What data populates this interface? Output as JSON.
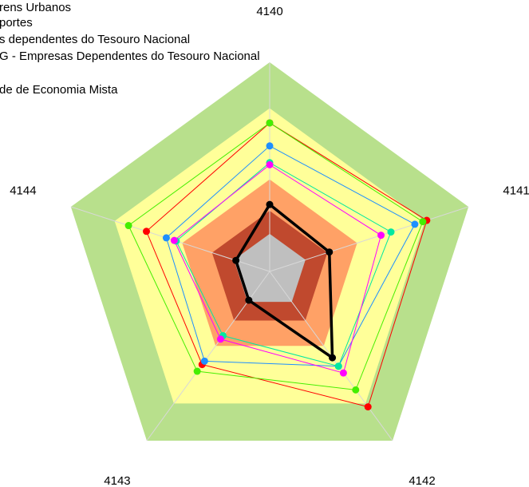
{
  "chart_data": {
    "type": "radar",
    "categories": [
      "4140",
      "4141",
      "4142",
      "4143",
      "4144"
    ],
    "ylim": [
      0,
      100
    ],
    "bands": [
      {
        "value": 100,
        "color": "#b8e08c"
      },
      {
        "value": 78,
        "color": "#ffff99"
      },
      {
        "value": 44,
        "color": "#ffa166"
      },
      {
        "value": 29,
        "color": "#c0492e"
      },
      {
        "value": 18,
        "color": "#bfbfbf"
      }
    ],
    "legend": [
      "rens Urbanos",
      "portes",
      "s dependentes do Tesouro Nacional",
      "G - Empresas Dependentes do Tesouro Nacional",
      "de de Economia Mista"
    ],
    "series": [
      {
        "color": "#ff0000",
        "values": [
          71,
          79,
          80,
          55,
          62
        ]
      },
      {
        "color": "#44ee00",
        "values": [
          71,
          77,
          70,
          59,
          71
        ]
      },
      {
        "color": "#1e8fff",
        "values": [
          60,
          73,
          56,
          53,
          52
        ]
      },
      {
        "color": "#00e8a0",
        "values": [
          52,
          61,
          56,
          38,
          47
        ]
      },
      {
        "color": "#ff00ff",
        "values": [
          51,
          56,
          60,
          40,
          48
        ]
      },
      {
        "color": "#000000",
        "values": [
          32,
          30,
          51,
          17,
          17
        ]
      }
    ]
  }
}
